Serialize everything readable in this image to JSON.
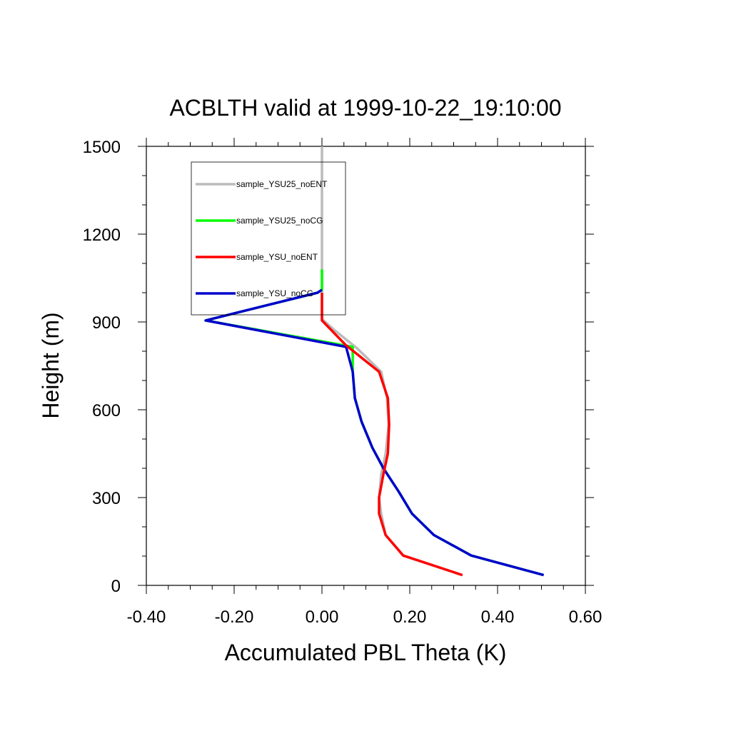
{
  "chart_data": {
    "type": "line",
    "title": "ACBLTH valid at 1999-10-22_19:10:00",
    "xlabel": "Accumulated PBL Theta (K)",
    "ylabel": "Height (m)",
    "xlim": [
      -0.4,
      0.6
    ],
    "ylim": [
      0,
      1500
    ],
    "x_ticks": [
      "-0.40",
      "-0.20",
      "0.00",
      "0.20",
      "0.40",
      "0.60"
    ],
    "y_ticks": [
      "0",
      "300",
      "600",
      "900",
      "1200",
      "1500"
    ],
    "grid": false,
    "legend_position": "top-left",
    "series": [
      {
        "name": "sample_YSU25_noENT",
        "color": "#bbbbbb",
        "points": [
          [
            0.32,
            35
          ],
          [
            0.185,
            102
          ],
          [
            0.145,
            172
          ],
          [
            0.135,
            245
          ],
          [
            0.13,
            300
          ],
          [
            0.135,
            380
          ],
          [
            0.145,
            450
          ],
          [
            0.152,
            550
          ],
          [
            0.148,
            640
          ],
          [
            0.135,
            730
          ],
          [
            0.08,
            810
          ],
          [
            0.03,
            870
          ],
          [
            0.0,
            910
          ],
          [
            0.0,
            1000
          ],
          [
            0.0,
            1100
          ],
          [
            0.0,
            1200
          ],
          [
            0.0,
            1300
          ],
          [
            0.0,
            1400
          ],
          [
            0.0,
            1500
          ]
        ]
      },
      {
        "name": "sample_YSU25_noCG",
        "color": "#00ff00",
        "points": [
          [
            0.505,
            35
          ],
          [
            0.34,
            102
          ],
          [
            0.255,
            172
          ],
          [
            0.205,
            245
          ],
          [
            0.175,
            320
          ],
          [
            0.14,
            400
          ],
          [
            0.115,
            470
          ],
          [
            0.09,
            560
          ],
          [
            0.075,
            640
          ],
          [
            0.07,
            730
          ],
          [
            0.07,
            815
          ],
          [
            -0.265,
            905
          ],
          [
            -0.01,
            1000
          ],
          [
            0.0,
            1010
          ],
          [
            0.0,
            1080
          ]
        ]
      },
      {
        "name": "sample_YSU_noENT",
        "color": "#ff0000",
        "points": [
          [
            0.32,
            35
          ],
          [
            0.185,
            102
          ],
          [
            0.145,
            172
          ],
          [
            0.13,
            245
          ],
          [
            0.13,
            300
          ],
          [
            0.14,
            380
          ],
          [
            0.15,
            450
          ],
          [
            0.153,
            550
          ],
          [
            0.15,
            640
          ],
          [
            0.13,
            730
          ],
          [
            0.055,
            820
          ],
          [
            0.0,
            905
          ],
          [
            0.0,
            1000
          ]
        ]
      },
      {
        "name": "sample_YSU_noCG",
        "color": "#0000cc",
        "points": [
          [
            0.505,
            35
          ],
          [
            0.34,
            102
          ],
          [
            0.255,
            172
          ],
          [
            0.205,
            245
          ],
          [
            0.175,
            320
          ],
          [
            0.14,
            400
          ],
          [
            0.115,
            470
          ],
          [
            0.09,
            560
          ],
          [
            0.075,
            640
          ],
          [
            0.07,
            730
          ],
          [
            0.055,
            815
          ],
          [
            -0.265,
            905
          ],
          [
            -0.01,
            1000
          ],
          [
            0.0,
            1010
          ]
        ]
      }
    ]
  }
}
